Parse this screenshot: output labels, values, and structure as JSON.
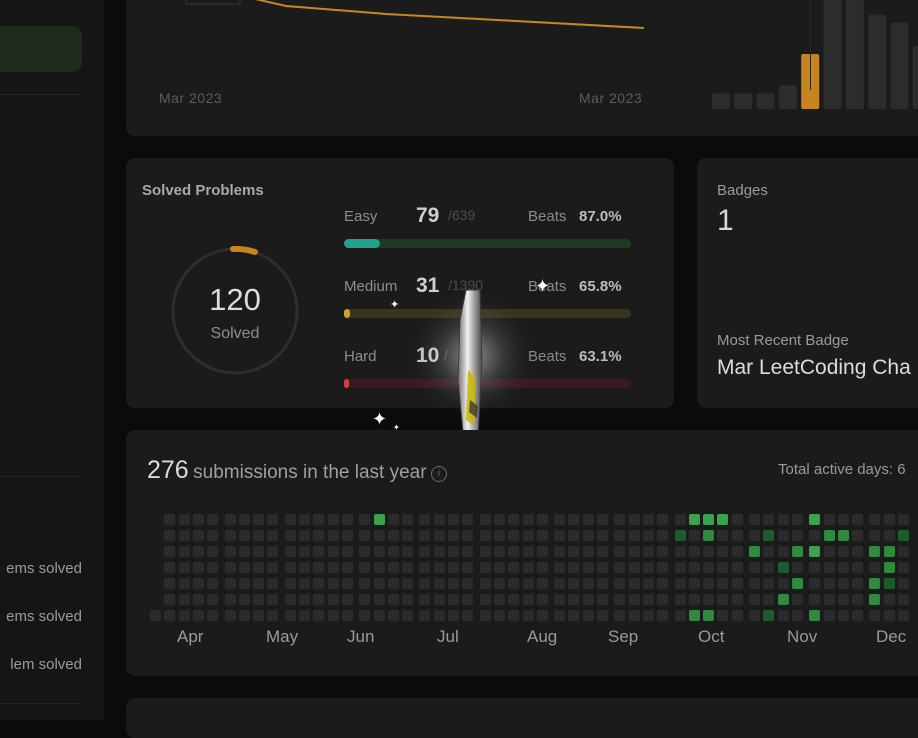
{
  "sidebar": {
    "stats": [
      "ems solved",
      "ems solved",
      "lem solved"
    ]
  },
  "trend": {
    "date_left": "Mar 2023",
    "date_right": "Mar 2023",
    "line_color": "#c7871d",
    "histogram": {
      "values": [
        2,
        2,
        2,
        3,
        7,
        14,
        14,
        12,
        11,
        8
      ],
      "highlight_index": 4,
      "highlight_color": "#c7841f"
    }
  },
  "solved": {
    "title": "Solved Problems",
    "total": "120",
    "total_label": "Solved",
    "ring_color": "#c7841f",
    "rows": [
      {
        "label": "Easy",
        "count": "79",
        "total": "/639",
        "beats_label": "Beats",
        "beats_value": "87.0%",
        "progress": 0.124,
        "fill": "#1fa38a",
        "track": "#1f3a20"
      },
      {
        "label": "Medium",
        "count": "31",
        "total": "/1390",
        "beats_label": "Beats",
        "beats_value": "65.8%",
        "progress": 0.022,
        "fill": "#d1a12b",
        "track": "#3a3419"
      },
      {
        "label": "Hard",
        "count": "10",
        "total": "/",
        "beats_label": "Beats",
        "beats_value": "63.1%",
        "progress": 0.0,
        "fill": "#d03f3f",
        "track": "#3a1b1b"
      }
    ]
  },
  "badges": {
    "title": "Badges",
    "count": "1",
    "recent_label": "Most Recent Badge",
    "recent_name": "Mar LeetCoding Cha"
  },
  "calendar": {
    "submissions_count": "276",
    "submissions_text": "submissions in the last year",
    "info_icon": "info-icon",
    "active_days_label": "Total active days: 6",
    "months": [
      "Apr",
      "May",
      "Jun",
      "Jul",
      "Aug",
      "Sep",
      "Oct",
      "Nov",
      "Dec"
    ],
    "colors": {
      "empty": "#2b2b2b",
      "level1": "#1f5a2c",
      "level2": "#2f8a3f",
      "level3": "#3ba34d"
    }
  }
}
